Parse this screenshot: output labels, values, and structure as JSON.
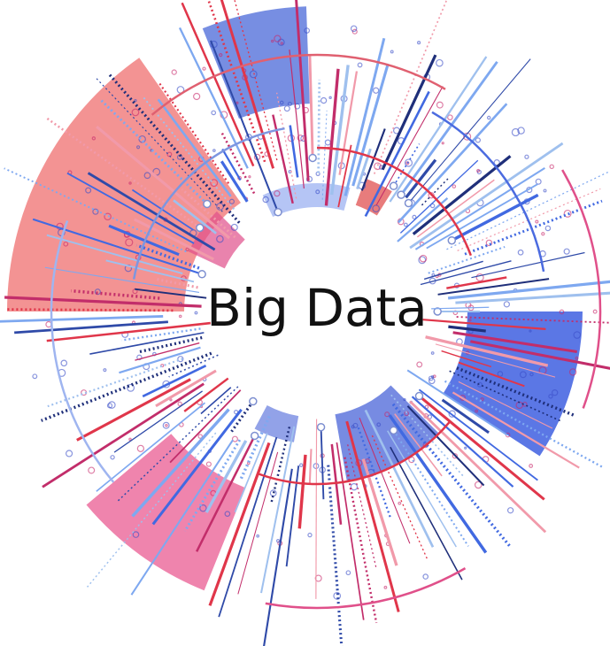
{
  "title": "Big Data"
}
